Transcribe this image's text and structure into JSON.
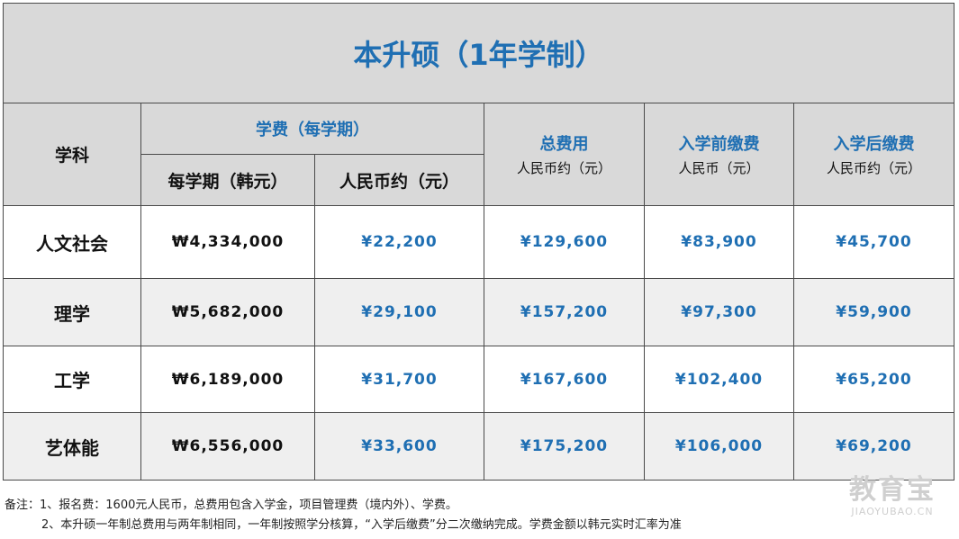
{
  "table": {
    "title": "本升硕（1年学制）",
    "headers": {
      "subject": "学科",
      "tuition_group": "学费（每学期）",
      "tuition_krw": "每学期（韩元）",
      "tuition_cny": "人民币约（元）",
      "total": "总费用",
      "total_sub": "人民币约（元）",
      "before": "入学前缴费",
      "before_sub": "人民币（元）",
      "after": "入学后缴费",
      "after_sub": "人民币约（元）"
    },
    "rows": [
      {
        "subject": "人文社会",
        "krw": "₩4,334,000",
        "cny": "¥22,200",
        "total": "¥129,600",
        "before": "¥83,900",
        "after": "¥45,700"
      },
      {
        "subject": "理学",
        "krw": "₩5,682,000",
        "cny": "¥29,100",
        "total": "¥157,200",
        "before": "¥97,300",
        "after": "¥59,900"
      },
      {
        "subject": "工学",
        "krw": "₩6,189,000",
        "cny": "¥31,700",
        "total": "¥167,600",
        "before": "¥102,400",
        "after": "¥65,200"
      },
      {
        "subject": "艺体能",
        "krw": "₩6,556,000",
        "cny": "¥33,600",
        "total": "¥175,200",
        "before": "¥106,000",
        "after": "¥69,200"
      }
    ]
  },
  "notes": {
    "line1": "备注：1、报名费：1600元人民币，总费用包含入学金，项目管理费（境内外）、学费。",
    "line2": "2、本升硕一年制总费用与两年制相同，一年制按照学分核算，“入学后缴费”分二次缴纳完成。学费金额以韩元实时汇率为准"
  },
  "watermark": {
    "main": "教育宝",
    "sub": "JIAOYUBAO.CN"
  },
  "colors": {
    "accent_blue": "#1f6fb3",
    "header_gray": "#d9d9d9",
    "stripe_gray": "#efefef"
  }
}
